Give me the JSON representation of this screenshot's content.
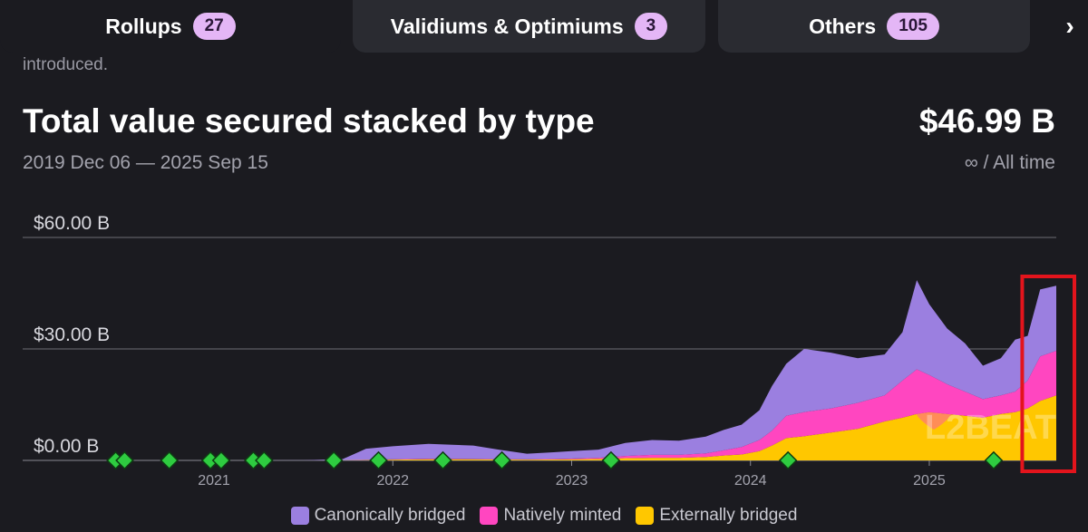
{
  "tabs": [
    {
      "label": "Rollups",
      "count": "27"
    },
    {
      "label": "Validiums & Optimiums",
      "count": "3"
    },
    {
      "label": "Others",
      "count": "105"
    }
  ],
  "intro_text": "introduced.",
  "header": {
    "title": "Total value secured stacked by type",
    "total": "$46.99 B",
    "date_range": "2019 Dec 06 — 2025 Sep 15",
    "timeframe": "∞ / All time"
  },
  "watermark": "L2BEAT",
  "colors": {
    "canonical": "#9b7fe0",
    "native": "#ff46c0",
    "external": "#ffc700",
    "highlight": "#e3141c",
    "milestone": "#2ecc40"
  },
  "chart_data": {
    "type": "area",
    "stacked": true,
    "title": "Total value secured stacked by type",
    "x_start": 2019.93,
    "x_end": 2025.71,
    "ylim": [
      0,
      60
    ],
    "y_unit": "B USD",
    "y_ticks": [
      {
        "value": 0,
        "label": "$0.00 B"
      },
      {
        "value": 30,
        "label": "$30.00 B"
      },
      {
        "value": 60,
        "label": "$60.00 B"
      }
    ],
    "x_ticks": [
      {
        "value": 2021.0,
        "label": "2021"
      },
      {
        "value": 2022.0,
        "label": "2022"
      },
      {
        "value": 2023.0,
        "label": "2023"
      },
      {
        "value": 2024.0,
        "label": "2024"
      },
      {
        "value": 2025.0,
        "label": "2025"
      }
    ],
    "x": [
      2019.93,
      2020.5,
      2021.0,
      2021.5,
      2021.72,
      2021.85,
      2022.0,
      2022.2,
      2022.45,
      2022.6,
      2022.75,
      2022.9,
      2023.0,
      2023.15,
      2023.3,
      2023.45,
      2023.6,
      2023.75,
      2023.85,
      2023.95,
      2024.05,
      2024.12,
      2024.2,
      2024.3,
      2024.45,
      2024.6,
      2024.75,
      2024.85,
      2024.93,
      2025.0,
      2025.1,
      2025.2,
      2025.3,
      2025.4,
      2025.48,
      2025.55,
      2025.62,
      2025.71
    ],
    "series": [
      {
        "name": "Externally bridged",
        "values": [
          0,
          0,
          0,
          0.01,
          0.05,
          0.1,
          0.2,
          0.3,
          0.3,
          0.25,
          0.2,
          0.25,
          0.3,
          0.4,
          0.6,
          0.7,
          0.7,
          0.9,
          1.3,
          1.6,
          2.5,
          4.0,
          6.0,
          6.5,
          7.5,
          8.5,
          10.5,
          11.5,
          12.5,
          13.0,
          12.5,
          12.0,
          11.5,
          12.5,
          13.0,
          14.0,
          16.0,
          17.5
        ]
      },
      {
        "name": "Natively minted",
        "values": [
          0,
          0,
          0,
          0,
          0.01,
          0.05,
          0.1,
          0.15,
          0.1,
          0.1,
          0.1,
          0.15,
          0.2,
          0.3,
          0.6,
          0.8,
          0.8,
          1.0,
          1.4,
          2.0,
          3.0,
          4.0,
          6.0,
          6.5,
          6.5,
          7.0,
          7.0,
          10.0,
          12.0,
          10.0,
          8.0,
          6.5,
          5.0,
          5.0,
          5.5,
          7.5,
          12.0,
          12.0
        ]
      },
      {
        "name": "Canonically bridged",
        "values": [
          0,
          0,
          0.01,
          0.02,
          0.3,
          3.0,
          3.5,
          4.0,
          3.6,
          2.5,
          1.5,
          1.8,
          2.0,
          2.2,
          3.5,
          4.0,
          3.8,
          4.5,
          5.5,
          6.0,
          8.0,
          12.0,
          14.0,
          17.0,
          15.0,
          12.0,
          11.0,
          13.0,
          24.0,
          19.0,
          15.0,
          13.0,
          9.0,
          10.0,
          14.0,
          12.0,
          18.0,
          17.5
        ]
      }
    ],
    "milestones": [
      2020.45,
      2020.5,
      2020.75,
      2020.98,
      2021.04,
      2021.22,
      2021.28,
      2021.67,
      2021.92,
      2022.28,
      2022.61,
      2023.22,
      2024.21,
      2025.36
    ],
    "highlighted_range": [
      2025.55,
      2025.71
    ],
    "legend": [
      {
        "name": "Canonically bridged",
        "color": "#9b7fe0"
      },
      {
        "name": "Natively minted",
        "color": "#ff46c0"
      },
      {
        "name": "Externally bridged",
        "color": "#ffc700"
      }
    ]
  }
}
